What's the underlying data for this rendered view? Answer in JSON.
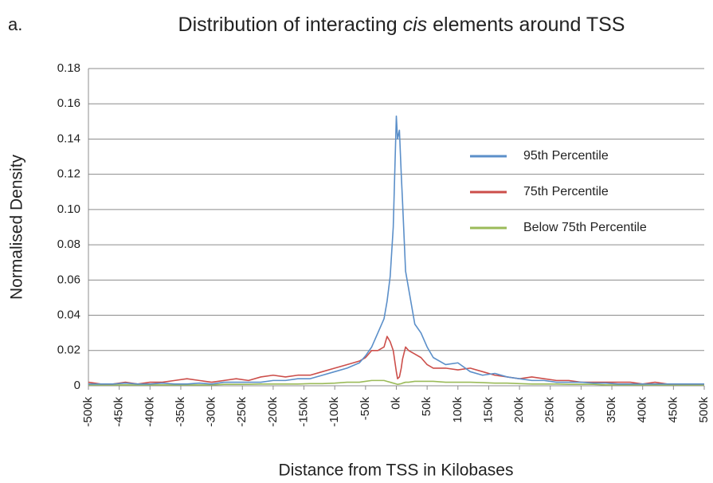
{
  "chart_data": {
    "type": "line",
    "panel_label": "a.",
    "title": [
      "Distribution of interacting ",
      "cis",
      " elements around TSS"
    ],
    "x_label": "Distance from TSS in Kilobases",
    "y_label": "Normalised Density",
    "x": [
      -500,
      -480,
      -460,
      -440,
      -420,
      -400,
      -380,
      -360,
      -340,
      -320,
      -300,
      -280,
      -260,
      -240,
      -220,
      -200,
      -180,
      -160,
      -140,
      -120,
      -100,
      -80,
      -60,
      -50,
      -40,
      -30,
      -20,
      -15,
      -10,
      -5,
      0,
      2,
      5,
      8,
      10,
      15,
      20,
      30,
      40,
      50,
      60,
      80,
      100,
      120,
      140,
      160,
      180,
      200,
      220,
      240,
      260,
      280,
      300,
      320,
      340,
      360,
      380,
      400,
      420,
      440,
      460,
      480,
      500
    ],
    "series": [
      {
        "name": "95th Percentile",
        "color": "#5b8fc9",
        "values": [
          0.001,
          0.001,
          0.001,
          0.0015,
          0.001,
          0.001,
          0.0015,
          0.001,
          0.001,
          0.0015,
          0.001,
          0.002,
          0.002,
          0.002,
          0.002,
          0.003,
          0.003,
          0.004,
          0.004,
          0.006,
          0.008,
          0.01,
          0.013,
          0.017,
          0.022,
          0.03,
          0.038,
          0.048,
          0.062,
          0.09,
          0.153,
          0.14,
          0.145,
          0.12,
          0.105,
          0.065,
          0.055,
          0.035,
          0.03,
          0.022,
          0.016,
          0.012,
          0.013,
          0.008,
          0.006,
          0.007,
          0.005,
          0.004,
          0.003,
          0.003,
          0.002,
          0.002,
          0.002,
          0.0015,
          0.0015,
          0.001,
          0.001,
          0.001,
          0.001,
          0.001,
          0.001,
          0.001,
          0.001
        ]
      },
      {
        "name": "75th Percentile",
        "color": "#cc4e4a",
        "values": [
          0.002,
          0.001,
          0.001,
          0.002,
          0.001,
          0.002,
          0.002,
          0.003,
          0.004,
          0.003,
          0.002,
          0.003,
          0.004,
          0.003,
          0.005,
          0.006,
          0.005,
          0.006,
          0.006,
          0.008,
          0.01,
          0.012,
          0.014,
          0.016,
          0.02,
          0.02,
          0.022,
          0.028,
          0.025,
          0.02,
          0.008,
          0.004,
          0.005,
          0.01,
          0.015,
          0.022,
          0.02,
          0.018,
          0.016,
          0.012,
          0.01,
          0.01,
          0.009,
          0.01,
          0.008,
          0.006,
          0.005,
          0.004,
          0.005,
          0.004,
          0.003,
          0.003,
          0.002,
          0.002,
          0.002,
          0.002,
          0.002,
          0.001,
          0.002,
          0.001,
          0.001,
          0.001,
          0.001
        ]
      },
      {
        "name": "Below 75th Percentile",
        "color": "#9bbb59",
        "values": [
          0.0005,
          0.0005,
          0.0005,
          0.0005,
          0.0005,
          0.0005,
          0.0005,
          0.0005,
          0.0005,
          0.0005,
          0.0005,
          0.0008,
          0.0008,
          0.0008,
          0.001,
          0.001,
          0.001,
          0.001,
          0.0012,
          0.0012,
          0.0015,
          0.002,
          0.002,
          0.0025,
          0.003,
          0.003,
          0.003,
          0.0025,
          0.002,
          0.0015,
          0.001,
          0.0008,
          0.001,
          0.0012,
          0.0015,
          0.002,
          0.002,
          0.0025,
          0.0025,
          0.0025,
          0.0025,
          0.002,
          0.002,
          0.002,
          0.0018,
          0.0015,
          0.0015,
          0.0012,
          0.001,
          0.001,
          0.001,
          0.0008,
          0.0008,
          0.0008,
          0.0005,
          0.0005,
          0.0005,
          0.0005,
          0.0005,
          0.0005,
          0.0005,
          0.0005,
          0.0005
        ]
      }
    ],
    "xlim": [
      -500,
      500
    ],
    "xticks": [
      {
        "value": -500,
        "label": "-500k"
      },
      {
        "value": -450,
        "label": "-450k"
      },
      {
        "value": -400,
        "label": "-400k"
      },
      {
        "value": -350,
        "label": "-350k"
      },
      {
        "value": -300,
        "label": "-300k"
      },
      {
        "value": -250,
        "label": "-250k"
      },
      {
        "value": -200,
        "label": "-200k"
      },
      {
        "value": -150,
        "label": "-150k"
      },
      {
        "value": -100,
        "label": "-100k"
      },
      {
        "value": -50,
        "label": "-50k"
      },
      {
        "value": 0,
        "label": "0k"
      },
      {
        "value": 50,
        "label": "50k"
      },
      {
        "value": 100,
        "label": "100k"
      },
      {
        "value": 150,
        "label": "150k"
      },
      {
        "value": 200,
        "label": "200k"
      },
      {
        "value": 250,
        "label": "250k"
      },
      {
        "value": 300,
        "label": "300k"
      },
      {
        "value": 350,
        "label": "350k"
      },
      {
        "value": 400,
        "label": "400k"
      },
      {
        "value": 450,
        "label": "450k"
      },
      {
        "value": 500,
        "label": "500k"
      }
    ],
    "ylim": [
      0,
      0.18
    ],
    "yticks": [
      0,
      0.02,
      0.04,
      0.06,
      0.08,
      {
        "value": 0.1,
        "label": "0.10"
      },
      0.12,
      0.14,
      0.16,
      0.18
    ],
    "grid": true,
    "legend": "right"
  }
}
